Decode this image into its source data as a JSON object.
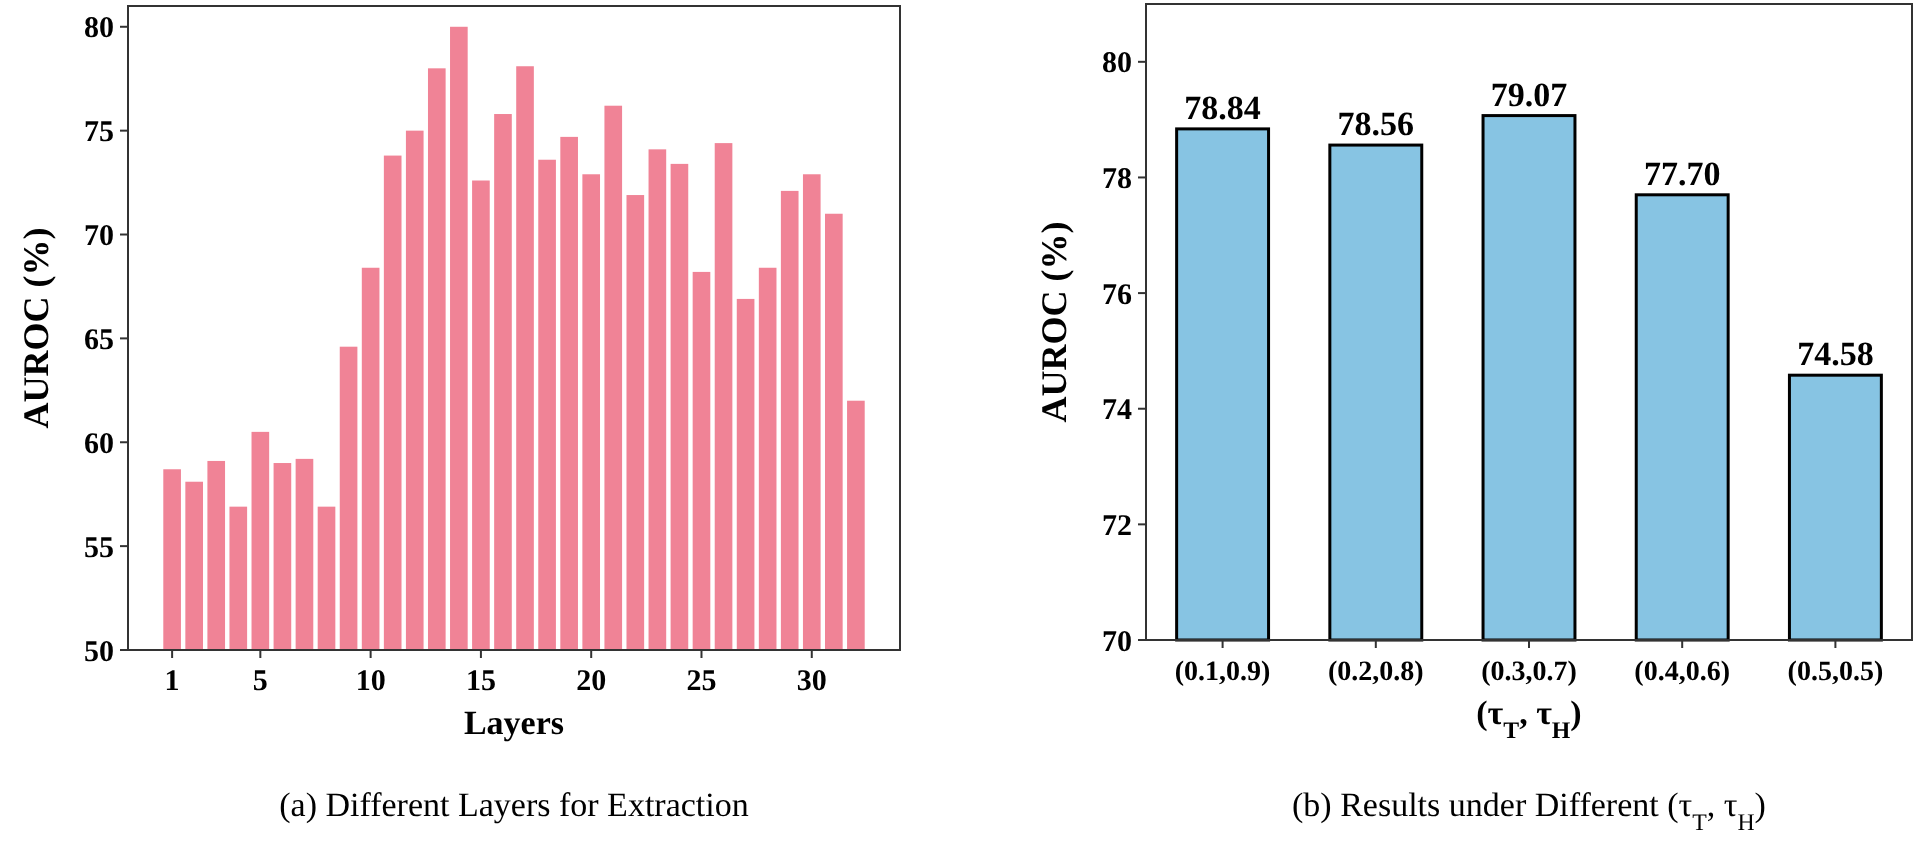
{
  "chart_data": [
    {
      "type": "bar",
      "xlabel": "Layers",
      "ylabel": "AUROC (%)",
      "color": "#f08396",
      "x": [
        1,
        2,
        3,
        4,
        5,
        6,
        7,
        8,
        9,
        10,
        11,
        12,
        13,
        14,
        15,
        16,
        17,
        18,
        19,
        20,
        21,
        22,
        23,
        24,
        25,
        26,
        27,
        28,
        29,
        30,
        31,
        32
      ],
      "values": [
        58.7,
        58.1,
        59.1,
        56.9,
        60.5,
        59.0,
        59.2,
        56.9,
        64.6,
        68.4,
        73.8,
        75.0,
        78.0,
        80.0,
        72.6,
        75.8,
        78.1,
        73.6,
        74.7,
        72.9,
        76.2,
        71.9,
        74.1,
        73.4,
        68.2,
        74.4,
        66.9,
        68.4,
        72.1,
        72.9,
        71.0,
        62.0
      ],
      "xlim": [
        -1,
        34
      ],
      "xticks": [
        1,
        5,
        10,
        15,
        20,
        25,
        30
      ],
      "ylim": [
        50,
        81
      ],
      "yticks": [
        50,
        55,
        60,
        65,
        70,
        75,
        80
      ],
      "grid": false,
      "annotations": [
        "(a) Different Layers for Extraction"
      ]
    },
    {
      "type": "bar",
      "xlabel": "(τ$_{T}$, τ$_{H}$)",
      "ylabel": "AUROC (%)",
      "color": "#87c4e3",
      "categories": [
        "(0.1,0.9)",
        "(0.2,0.8)",
        "(0.3,0.7)",
        "(0.4,0.6)",
        "(0.5,0.5)"
      ],
      "values": [
        78.84,
        78.56,
        79.07,
        77.7,
        74.58
      ],
      "value_labels": [
        "78.84",
        "78.56",
        "79.07",
        "77.70",
        "74.58"
      ],
      "ylim": [
        70,
        81
      ],
      "yticks": [
        70,
        72,
        74,
        76,
        78,
        80
      ],
      "grid": false,
      "annotations": [
        "(b) Results under Different (τ$_{T}$, τ$_{H}$)"
      ]
    }
  ]
}
